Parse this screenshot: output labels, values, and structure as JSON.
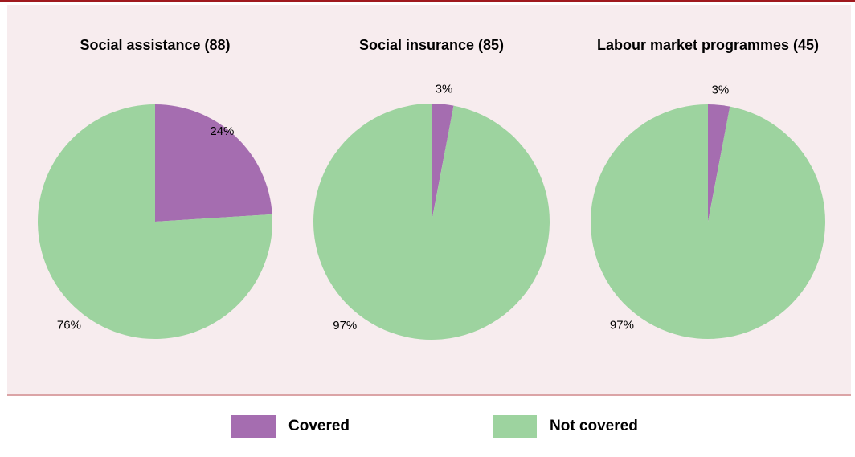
{
  "chart_data": [
    {
      "type": "pie",
      "title": "Social assistance (88)",
      "slices": [
        {
          "label": "Covered",
          "value": 24,
          "value_label": "24%",
          "color": "#a56db0"
        },
        {
          "label": "Not covered",
          "value": 76,
          "value_label": "76%",
          "color": "#9dd39f"
        }
      ]
    },
    {
      "type": "pie",
      "title": "Social insurance (85)",
      "slices": [
        {
          "label": "Covered",
          "value": 3,
          "value_label": "3%",
          "color": "#a56db0"
        },
        {
          "label": "Not covered",
          "value": 97,
          "value_label": "97%",
          "color": "#9dd39f"
        }
      ]
    },
    {
      "type": "pie",
      "title": "Labour market programmes (45)",
      "slices": [
        {
          "label": "Covered",
          "value": 3,
          "value_label": "3%",
          "color": "#a56db0"
        },
        {
          "label": "Not covered",
          "value": 97,
          "value_label": "97%",
          "color": "#9dd39f"
        }
      ]
    }
  ],
  "legend": {
    "placement": "bottom",
    "items": [
      {
        "label": "Covered",
        "color": "#a56db0"
      },
      {
        "label": "Not covered",
        "color": "#9dd39f"
      }
    ]
  }
}
